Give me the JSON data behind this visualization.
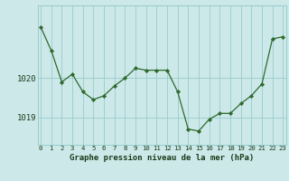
{
  "x": [
    0,
    1,
    2,
    3,
    4,
    5,
    6,
    7,
    8,
    9,
    10,
    11,
    12,
    13,
    14,
    15,
    16,
    17,
    18,
    19,
    20,
    21,
    22,
    23
  ],
  "y": [
    1021.3,
    1020.7,
    1019.9,
    1020.1,
    1019.65,
    1019.45,
    1019.55,
    1019.8,
    1020.0,
    1020.25,
    1020.2,
    1020.2,
    1020.2,
    1019.65,
    1018.7,
    1018.65,
    1018.95,
    1019.1,
    1019.1,
    1019.35,
    1019.55,
    1019.85,
    1021.0,
    1021.05
  ],
  "line_color": "#2d6a2d",
  "marker_color": "#2d6a2d",
  "bg_color": "#cce8e8",
  "grid_color": "#99cccc",
  "xlabel_label": "Graphe pression niveau de la mer (hPa)",
  "ylim_min": 1018.3,
  "ylim_max": 1021.85,
  "tick_label_color": "#1a3a1a",
  "xlabel_fontsize": 6.5,
  "ytick_fontsize": 6.5,
  "xtick_fontsize": 5.2
}
